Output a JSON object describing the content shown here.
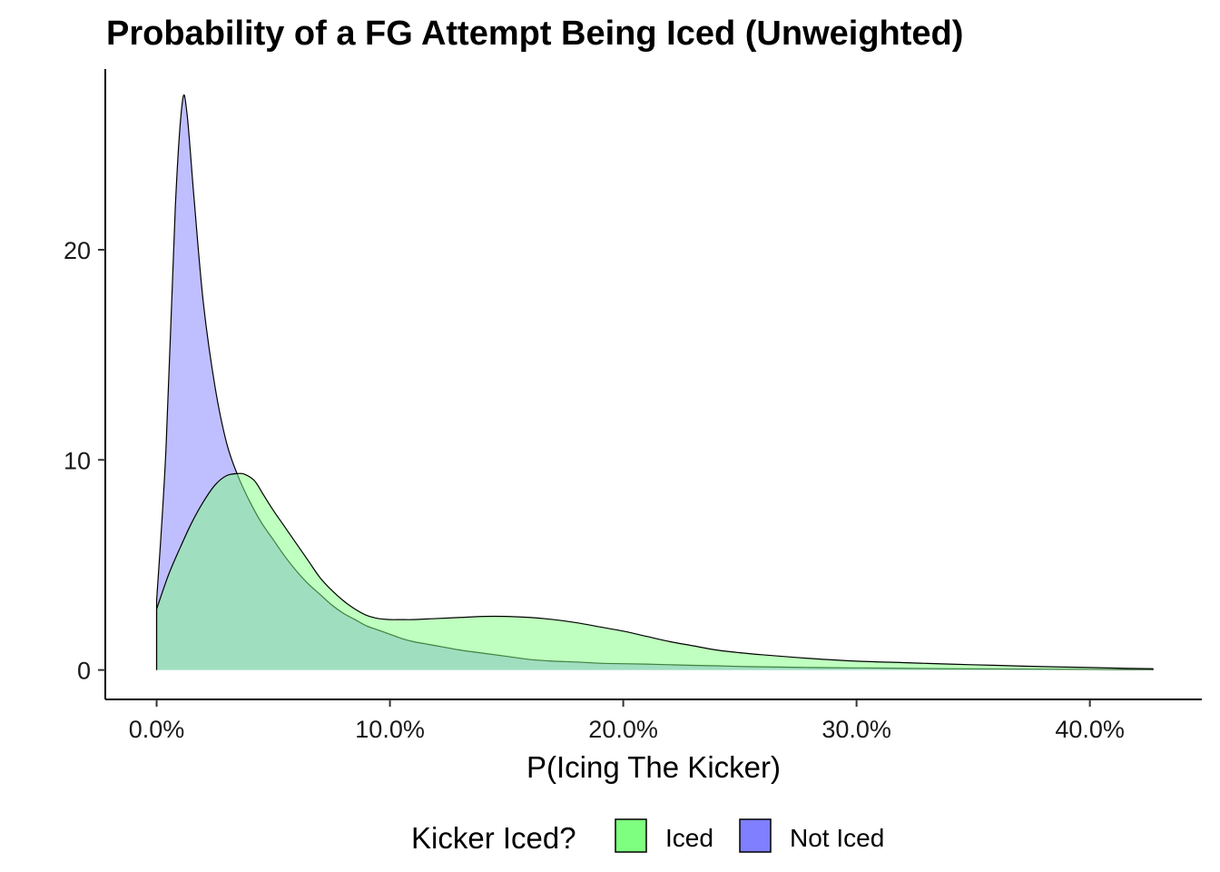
{
  "chart_data": {
    "type": "area",
    "title": "Probability of a FG Attempt Being Iced (Unweighted)",
    "xlabel": "P(Icing The Kicker)",
    "ylabel": "",
    "xlim": [
      -0.022,
      0.448
    ],
    "ylim": [
      -1.4,
      28.6
    ],
    "x_ticks": [
      0.0,
      0.1,
      0.2,
      0.3,
      0.4
    ],
    "x_tick_labels": [
      "0.0%",
      "10.0%",
      "20.0%",
      "30.0%",
      "40.0%"
    ],
    "y_ticks": [
      0,
      10,
      20
    ],
    "y_tick_labels": [
      "0",
      "10",
      "20"
    ],
    "grid": false,
    "legend": {
      "title": "Kicker Iced?",
      "position": "bottom",
      "entries": [
        {
          "label": "Iced",
          "color": "#7fff7f"
        },
        {
          "label": "Not Iced",
          "color": "#7f7fff"
        }
      ]
    },
    "series": [
      {
        "name": "Not Iced",
        "color": "#7f7fff",
        "x": [
          0.0,
          0.004,
          0.008,
          0.011,
          0.013,
          0.016,
          0.02,
          0.025,
          0.03,
          0.035,
          0.04,
          0.045,
          0.05,
          0.055,
          0.06,
          0.065,
          0.07,
          0.075,
          0.08,
          0.085,
          0.09,
          0.095,
          0.1,
          0.105,
          0.11,
          0.115,
          0.12,
          0.125,
          0.13,
          0.14,
          0.15,
          0.16,
          0.17,
          0.18,
          0.19,
          0.2,
          0.21,
          0.22,
          0.23,
          0.24,
          0.25,
          0.26,
          0.28,
          0.3,
          0.32,
          0.34,
          0.36,
          0.38,
          0.4,
          0.415,
          0.427
        ],
        "y": [
          3.3,
          10.5,
          22.0,
          27.0,
          26.5,
          22.5,
          17.5,
          13.5,
          10.8,
          9.2,
          8.0,
          7.0,
          6.2,
          5.4,
          4.7,
          4.1,
          3.6,
          3.1,
          2.7,
          2.4,
          2.1,
          1.9,
          1.7,
          1.5,
          1.35,
          1.25,
          1.15,
          1.05,
          0.95,
          0.8,
          0.65,
          0.5,
          0.42,
          0.38,
          0.32,
          0.3,
          0.28,
          0.25,
          0.22,
          0.2,
          0.17,
          0.15,
          0.12,
          0.1,
          0.08,
          0.06,
          0.05,
          0.04,
          0.03,
          0.02,
          0.02
        ]
      },
      {
        "name": "Iced",
        "color": "#7fff7f",
        "x": [
          0.0,
          0.005,
          0.01,
          0.015,
          0.02,
          0.025,
          0.03,
          0.035,
          0.038,
          0.042,
          0.046,
          0.05,
          0.055,
          0.06,
          0.065,
          0.07,
          0.075,
          0.08,
          0.085,
          0.09,
          0.095,
          0.1,
          0.105,
          0.11,
          0.12,
          0.13,
          0.14,
          0.15,
          0.16,
          0.17,
          0.18,
          0.19,
          0.2,
          0.21,
          0.22,
          0.23,
          0.24,
          0.25,
          0.26,
          0.28,
          0.3,
          0.32,
          0.34,
          0.36,
          0.38,
          0.4,
          0.415,
          0.427
        ],
        "y": [
          2.9,
          4.5,
          5.8,
          7.0,
          8.0,
          8.8,
          9.25,
          9.35,
          9.3,
          9.0,
          8.3,
          7.6,
          6.8,
          6.0,
          5.2,
          4.4,
          3.8,
          3.3,
          2.9,
          2.6,
          2.45,
          2.4,
          2.4,
          2.4,
          2.45,
          2.5,
          2.55,
          2.55,
          2.5,
          2.4,
          2.25,
          2.05,
          1.85,
          1.6,
          1.35,
          1.15,
          0.95,
          0.82,
          0.72,
          0.55,
          0.42,
          0.35,
          0.28,
          0.22,
          0.16,
          0.12,
          0.08,
          0.06
        ]
      }
    ]
  }
}
